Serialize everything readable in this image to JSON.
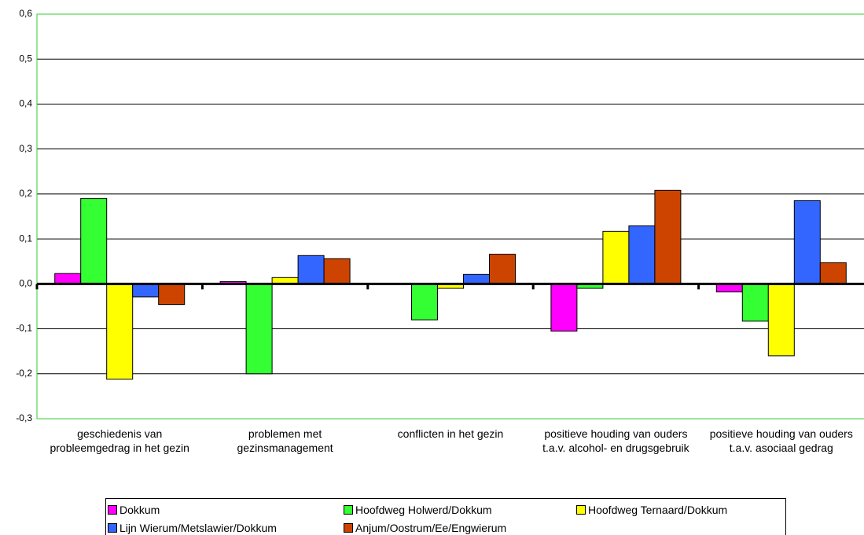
{
  "chart_data": {
    "type": "bar",
    "categories": [
      "geschiedenis van probleemgedrag in het gezin",
      "problemen met gezinsmanagement",
      "conflicten in het gezin",
      "positieve houding van ouders t.a.v. alcohol- en drugsgebruik",
      "positieve houding van ouders t.a.v. asociaal gedrag"
    ],
    "series": [
      {
        "name": "Dokkum",
        "color": "#ff00ff",
        "values": [
          0.023,
          0.005,
          0,
          -0.105,
          -0.018
        ]
      },
      {
        "name": "Hoofdweg Holwerd/Dokkum",
        "color": "#33ff33",
        "values": [
          0.19,
          -0.2,
          -0.08,
          -0.01,
          -0.083
        ]
      },
      {
        "name": "Hoofdweg Ternaard/Dokkum",
        "color": "#ffff00",
        "values": [
          -0.212,
          0.014,
          -0.01,
          0.117,
          -0.16
        ]
      },
      {
        "name": "Lijn Wierum/Metslawier/Dokkum",
        "color": "#3366ff",
        "values": [
          -0.029,
          0.063,
          0.021,
          0.129,
          0.185
        ]
      },
      {
        "name": "Anjum/Oostrum/Ee/Engwierum",
        "color": "#cc4400",
        "values": [
          -0.046,
          0.056,
          0.066,
          0.208,
          0.047
        ]
      }
    ],
    "ylim": [
      -0.3,
      0.6
    ],
    "yticks": [
      {
        "value": -0.3,
        "label": "-0,3"
      },
      {
        "value": -0.2,
        "label": "-0,2"
      },
      {
        "value": -0.1,
        "label": "-0,1"
      },
      {
        "value": 0,
        "label": "0,0"
      },
      {
        "value": 0.1,
        "label": "0,1"
      },
      {
        "value": 0.2,
        "label": "0,2"
      },
      {
        "value": 0.3,
        "label": "0,3"
      },
      {
        "value": 0.4,
        "label": "0,4"
      },
      {
        "value": 0.5,
        "label": "0,5"
      },
      {
        "value": 0.6,
        "label": "0,6"
      }
    ],
    "grid": true
  }
}
